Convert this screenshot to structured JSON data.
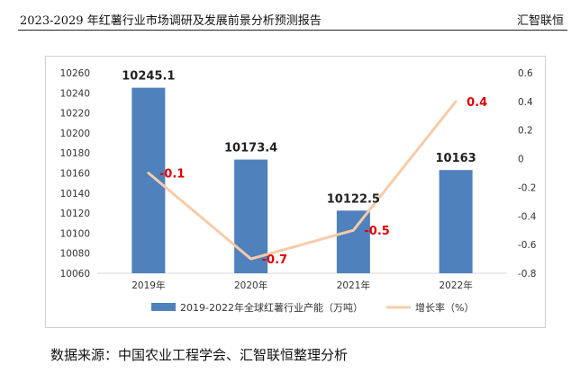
{
  "header": {
    "title": "2023-2029 年红薯行业市场调研及发展前景分析预测报告",
    "brand": "汇智联恒"
  },
  "source": "数据来源：中国农业工程学会、汇智联恒整理分析",
  "chart_data": {
    "type": "bar",
    "categories": [
      "2019年",
      "2020年",
      "2021年",
      "2022年"
    ],
    "series": [
      {
        "name": "2019-2022年全球红薯行业产能（万吨）",
        "kind": "bar",
        "axis": "left",
        "values": [
          10245.1,
          10173.4,
          10122.5,
          10163
        ],
        "labels": [
          "10245.1",
          "10173.4",
          "10122.5",
          "10163"
        ],
        "color": "#4f81bd"
      },
      {
        "name": "增长率（%）",
        "kind": "line",
        "axis": "right",
        "values": [
          -0.1,
          -0.7,
          -0.5,
          0.4
        ],
        "labels": [
          "-0.1",
          "-0.7",
          "-0.5",
          "0.4"
        ],
        "color": "#f8cba9",
        "label_color": "#e00000"
      }
    ],
    "left_axis": {
      "ylim": [
        10060,
        10260
      ],
      "ticks": [
        "10060",
        "10080",
        "10100",
        "10120",
        "10140",
        "10160",
        "10180",
        "10200",
        "10220",
        "10240",
        "10260"
      ]
    },
    "right_axis": {
      "ylim": [
        -0.8,
        0.6
      ],
      "ticks": [
        "-0.8",
        "-0.6",
        "-0.4",
        "-0.2",
        "0",
        "0.2",
        "0.4",
        "0.6"
      ]
    },
    "gridlines": false,
    "legend_position": "bottom"
  }
}
